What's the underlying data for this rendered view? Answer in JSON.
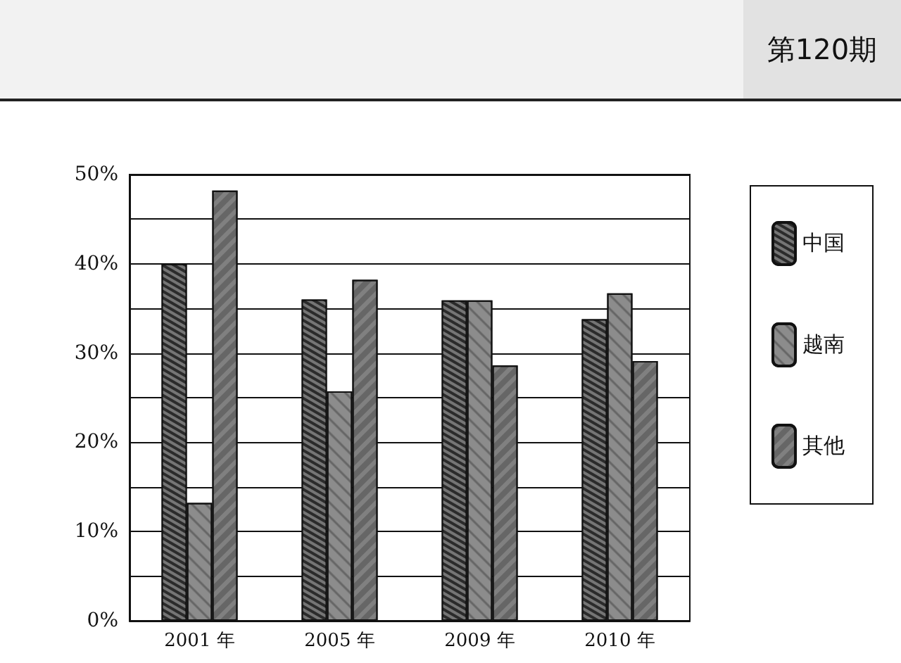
{
  "chart_data": {
    "type": "bar",
    "annotations": [
      "第120期"
    ],
    "categories": [
      "2001 年",
      "2005 年",
      "2009 年",
      "2010 年"
    ],
    "series": [
      {
        "name": "中国",
        "color": "#2b2b2b",
        "values": [
          40,
          36,
          35.9,
          33.8
        ]
      },
      {
        "name": "越南",
        "color": "#8c8c8c",
        "values": [
          13.2,
          25.7,
          35.9,
          36.7
        ]
      },
      {
        "name": "其他",
        "color": "#808080",
        "values": [
          48.2,
          38.2,
          28.6,
          29.1
        ]
      }
    ],
    "ylim": [
      0,
      50
    ],
    "yticks": [
      {
        "value": 0,
        "label": "0%"
      },
      {
        "value": 5,
        "label": null
      },
      {
        "value": 10,
        "label": "10%"
      },
      {
        "value": 15,
        "label": null
      },
      {
        "value": 20,
        "label": "20%"
      },
      {
        "value": 25,
        "label": null
      },
      {
        "value": 30,
        "label": "30%"
      },
      {
        "value": 35,
        "label": null
      },
      {
        "value": 40,
        "label": "40%"
      },
      {
        "value": 45,
        "label": null
      },
      {
        "value": 50,
        "label": "50%"
      }
    ],
    "grid": "y",
    "legend": "right"
  }
}
